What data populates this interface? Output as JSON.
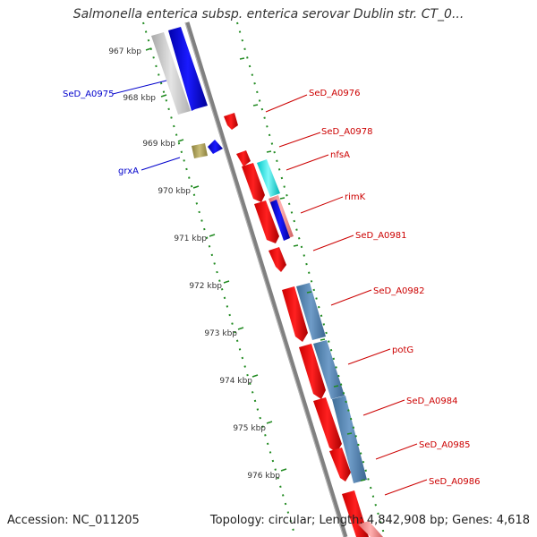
{
  "title": "Salmonella enterica subsp. enterica serovar Dublin str. CT_0...",
  "footer": {
    "accession": "Accession: NC_011205",
    "summary": "Topology: circular; Length: 4,842,908 bp; Genes: 4,618"
  },
  "colors": {
    "backbone": "#808080",
    "tick": "#228b22",
    "forward_label": "#cc0000",
    "reverse_label": "#0000cc"
  },
  "ticks": [
    {
      "label": "967 kbp"
    },
    {
      "label": "968 kbp"
    },
    {
      "label": "969 kbp"
    },
    {
      "label": "970 kbp"
    },
    {
      "label": "971 kbp"
    },
    {
      "label": "972 kbp"
    },
    {
      "label": "973 kbp"
    },
    {
      "label": "974 kbp"
    },
    {
      "label": "975 kbp"
    },
    {
      "label": "976 kbp"
    }
  ],
  "gene_labels": [
    {
      "text": "SeD_A0975",
      "strand": "reverse"
    },
    {
      "text": "grxA",
      "strand": "reverse"
    },
    {
      "text": "SeD_A0976",
      "strand": "forward"
    },
    {
      "text": "SeD_A0978",
      "strand": "forward"
    },
    {
      "text": "nfsA",
      "strand": "forward"
    },
    {
      "text": "rimK",
      "strand": "forward"
    },
    {
      "text": "SeD_A0981",
      "strand": "forward"
    },
    {
      "text": "SeD_A0982",
      "strand": "forward"
    },
    {
      "text": "potG",
      "strand": "forward"
    },
    {
      "text": "SeD_A0984",
      "strand": "forward"
    },
    {
      "text": "SeD_A0985",
      "strand": "forward"
    },
    {
      "text": "SeD_A0986",
      "strand": "forward"
    }
  ]
}
